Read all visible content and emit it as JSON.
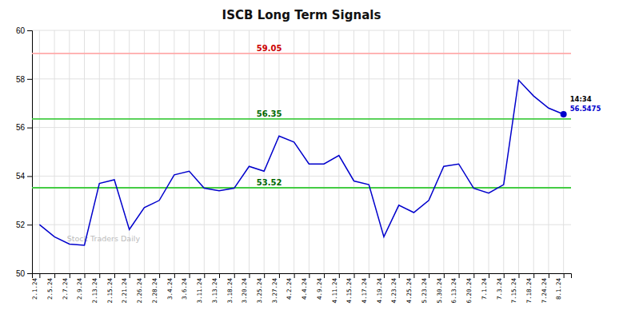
{
  "chart_data": {
    "type": "line",
    "title": "ISCB Long Term Signals",
    "categories": [
      "2.1.24",
      "2.5.24",
      "2.7.24",
      "2.9.24",
      "2.13.24",
      "2.15.24",
      "2.21.24",
      "2.26.24",
      "2.28.24",
      "3.4.24",
      "3.6.24",
      "3.11.24",
      "3.13.24",
      "3.18.24",
      "3.20.24",
      "3.25.24",
      "3.27.24",
      "4.2.24",
      "4.4.24",
      "4.9.24",
      "4.11.24",
      "4.15.24",
      "4.17.24",
      "4.19.24",
      "4.23.24",
      "4.25.24",
      "5.23.24",
      "5.30.24",
      "6.13.24",
      "6.20.24",
      "7.1.24",
      "7.3.24",
      "7.15.24",
      "7.18.24",
      "7.24.24",
      "8.1.24"
    ],
    "values": [
      52.0,
      51.5,
      51.2,
      51.15,
      53.7,
      53.85,
      51.8,
      52.7,
      53.0,
      54.05,
      54.2,
      53.5,
      53.4,
      53.5,
      54.4,
      54.2,
      55.65,
      55.4,
      54.5,
      54.5,
      54.85,
      53.8,
      53.65,
      51.5,
      52.8,
      52.5,
      53.0,
      54.4,
      54.5,
      53.5,
      53.3,
      53.65,
      57.95,
      57.3,
      56.8,
      56.5475
    ],
    "color": "#0000cc",
    "reference_lines": [
      {
        "value": 59.05,
        "color": "#ffaaaa",
        "label_color": "#cc0000"
      },
      {
        "value": 56.35,
        "color": "#44cc44",
        "label_color": "#006600"
      },
      {
        "value": 53.52,
        "color": "#44cc44",
        "label_color": "#006600"
      }
    ],
    "last_point": {
      "label": "14:34",
      "value": 56.5475
    },
    "watermark": "Stock Traders Daily",
    "ylim": [
      50,
      60
    ],
    "yticks": [
      50,
      52,
      54,
      56,
      58,
      60
    ],
    "grid": true
  }
}
